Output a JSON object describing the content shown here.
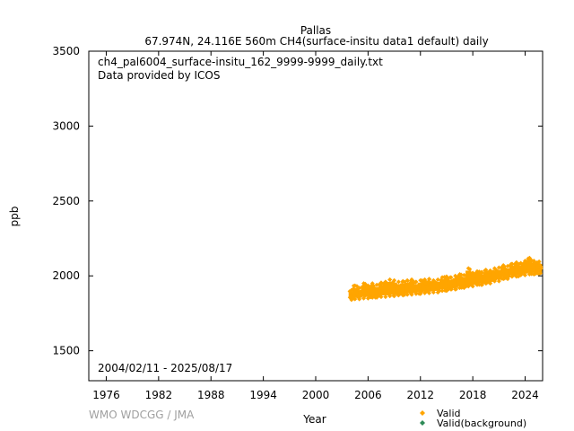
{
  "header": {
    "station": "Pallas",
    "subtitle": "67.974N, 24.116E 560m    CH4(surface-insitu data1 default) daily"
  },
  "annotations": {
    "filename": "ch4_pal6004_surface-insitu_162_9999-9999_daily.txt",
    "provider": "Data provided by ICOS",
    "period": "2004/02/11 - 2025/08/17"
  },
  "watermark": "WMO WDCGG / JMA",
  "colors": {
    "valid": "#ffa500",
    "background": "#2e8b57",
    "axis": "#000000"
  },
  "chart_data": {
    "type": "scatter",
    "xlabel": "Year",
    "ylabel": "ppb",
    "xlim": [
      1974,
      2026
    ],
    "ylim": [
      1300,
      3500
    ],
    "x_ticks": [
      "1976",
      "1982",
      "1988",
      "1994",
      "2000",
      "2006",
      "2012",
      "2018",
      "2024"
    ],
    "y_ticks": [
      "1500",
      "2000",
      "2500",
      "3000",
      "3500"
    ],
    "legend": {
      "placement": "bottom-right",
      "entries": [
        "Valid",
        "Valid(background)"
      ]
    },
    "series": [
      {
        "name": "Valid",
        "marker": "diamond",
        "x": [
          2004.1,
          2004.5,
          2005.0,
          2005.5,
          2006.0,
          2006.5,
          2007.0,
          2007.5,
          2008.0,
          2008.5,
          2009.0,
          2009.5,
          2010.0,
          2010.5,
          2011.0,
          2011.5,
          2012.0,
          2012.5,
          2013.0,
          2013.5,
          2014.0,
          2014.5,
          2015.0,
          2015.5,
          2016.0,
          2016.5,
          2017.0,
          2017.5,
          2018.0,
          2018.5,
          2019.0,
          2019.5,
          2020.0,
          2020.5,
          2021.0,
          2021.5,
          2022.0,
          2022.5,
          2023.0,
          2023.5,
          2024.0,
          2024.5,
          2025.0,
          2025.6
        ],
        "y": [
          1870,
          1880,
          1875,
          1885,
          1880,
          1890,
          1885,
          1895,
          1890,
          1900,
          1895,
          1905,
          1900,
          1910,
          1905,
          1915,
          1910,
          1920,
          1915,
          1925,
          1920,
          1935,
          1930,
          1945,
          1940,
          1955,
          1950,
          1965,
          1960,
          1975,
          1970,
          1985,
          1980,
          1995,
          1995,
          2010,
          2010,
          2025,
          2020,
          2035,
          2030,
          2045,
          2040,
          2040
        ],
        "y_low": [
          1840,
          1845,
          1845,
          1850,
          1850,
          1855,
          1855,
          1860,
          1860,
          1865,
          1865,
          1870,
          1870,
          1875,
          1875,
          1880,
          1880,
          1885,
          1885,
          1890,
          1890,
          1900,
          1900,
          1910,
          1910,
          1920,
          1920,
          1930,
          1930,
          1940,
          1940,
          1950,
          1950,
          1965,
          1965,
          1980,
          1980,
          1995,
          1995,
          2005,
          2005,
          2010,
          2010,
          2015
        ],
        "y_high": [
          1905,
          1935,
          1920,
          1950,
          1935,
          1950,
          1940,
          1955,
          1960,
          1975,
          1970,
          1960,
          1965,
          1970,
          1975,
          1960,
          1970,
          1975,
          1980,
          1970,
          1975,
          1990,
          1995,
          1990,
          2000,
          2010,
          2005,
          2050,
          2020,
          2030,
          2025,
          2040,
          2035,
          2050,
          2055,
          2070,
          2065,
          2080,
          2090,
          2085,
          2100,
          2120,
          2100,
          2095
        ]
      }
    ]
  }
}
